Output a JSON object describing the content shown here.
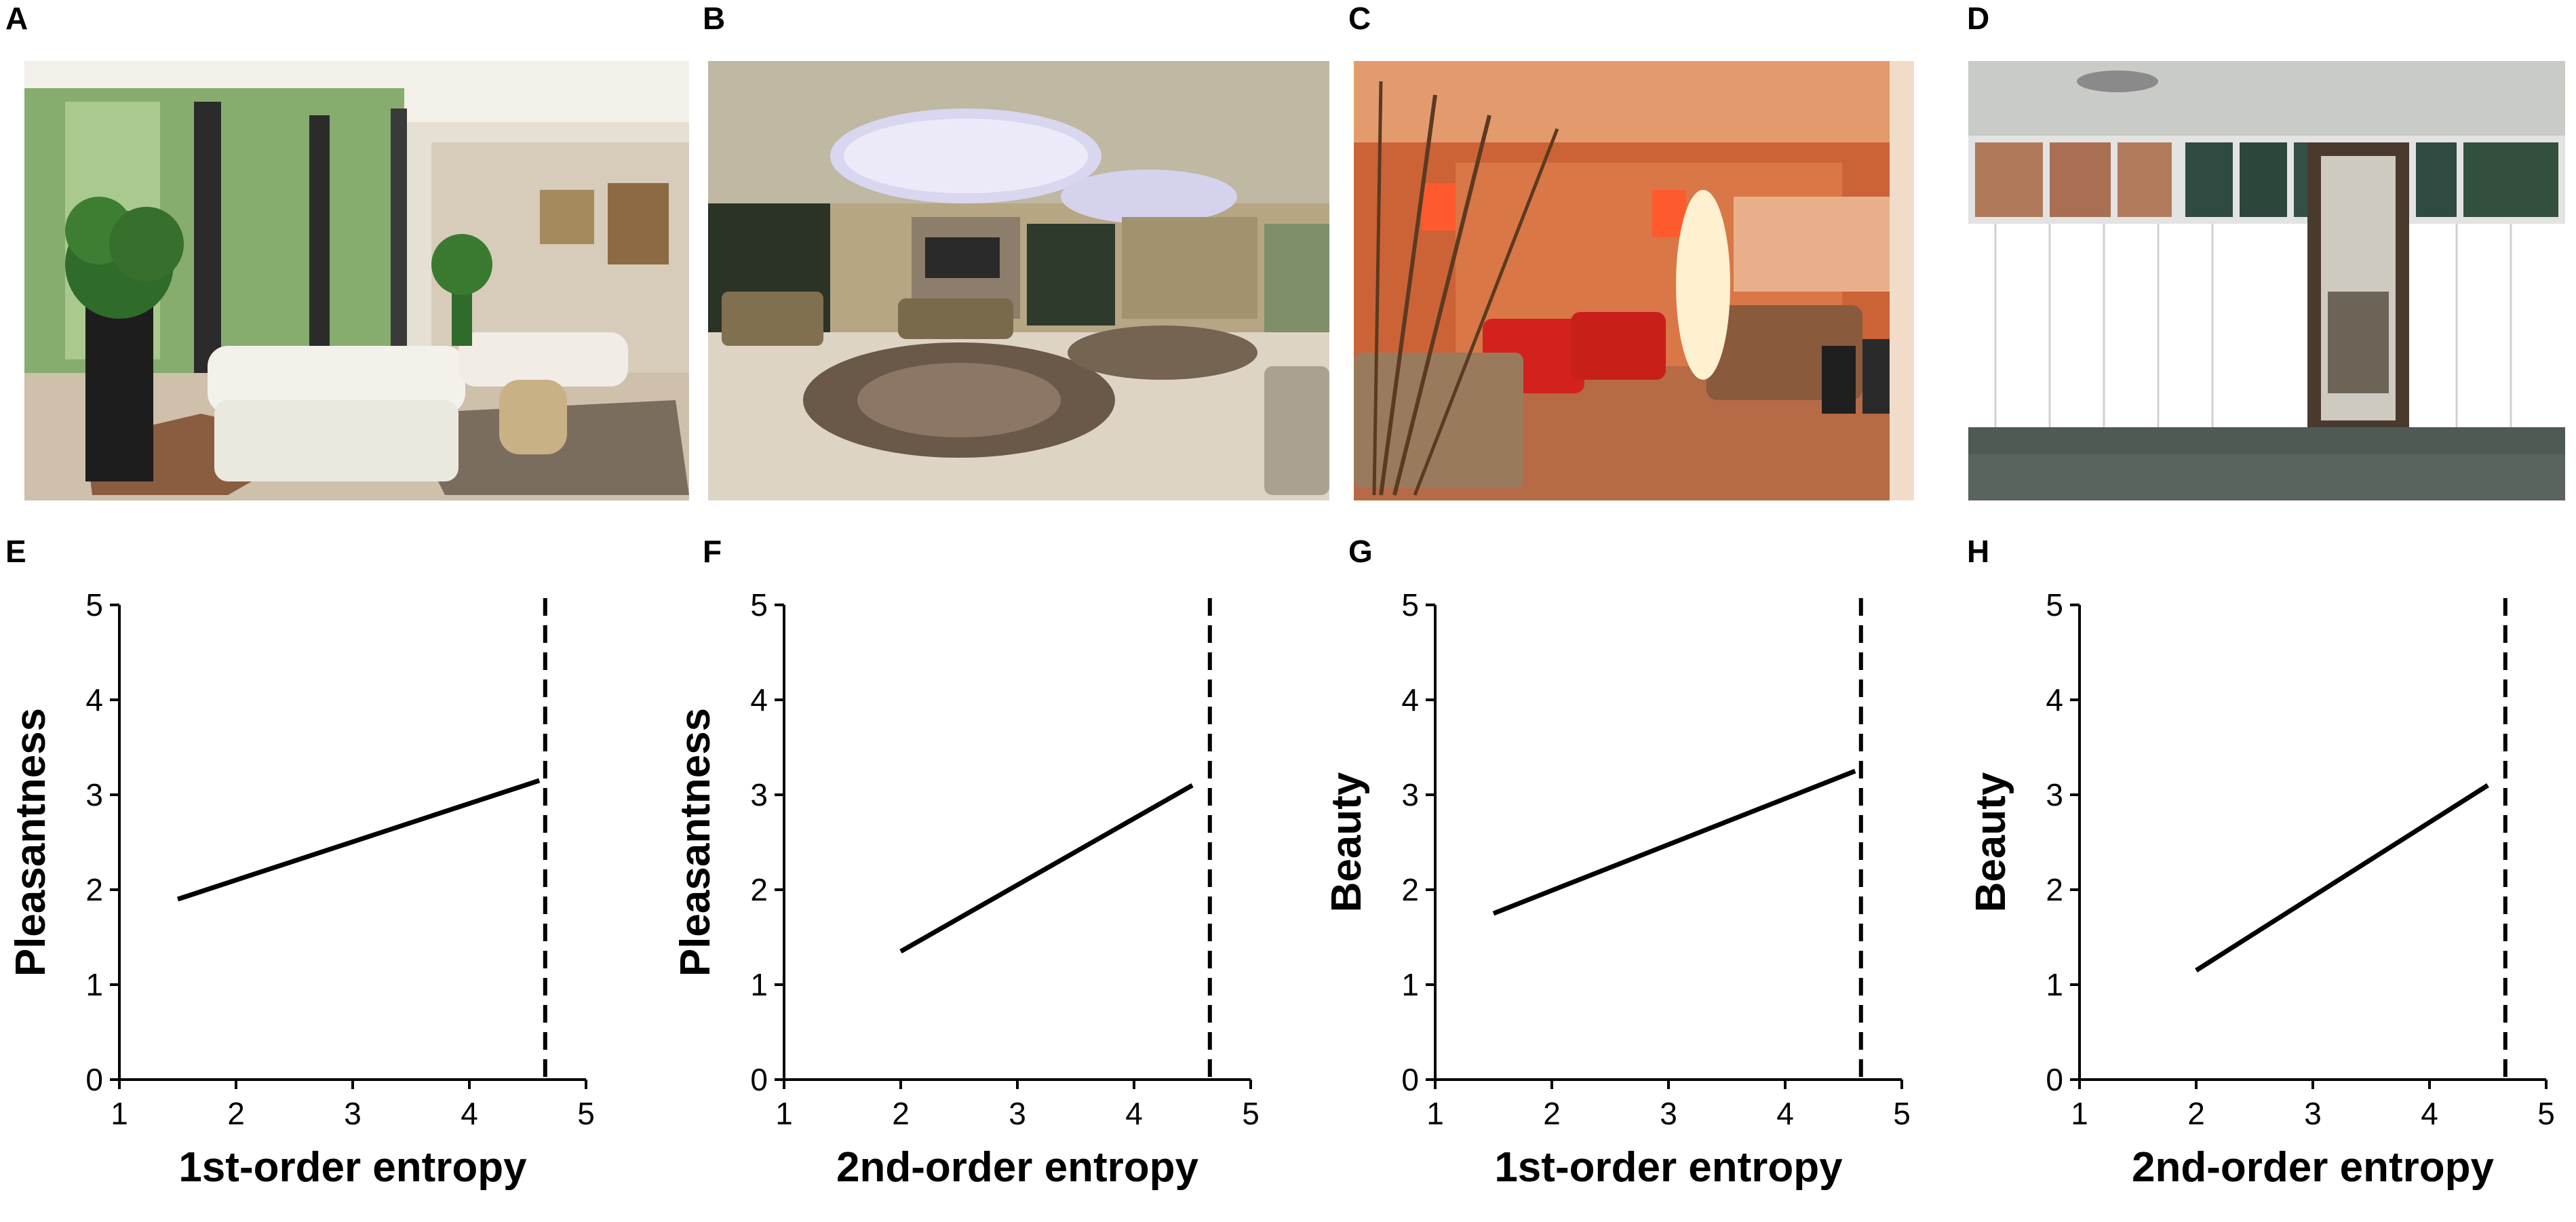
{
  "panels": {
    "A": "A",
    "B": "B",
    "C": "C",
    "D": "D",
    "E": "E",
    "F": "F",
    "G": "G",
    "H": "H"
  },
  "photos": [
    {
      "id": "A",
      "name": "photo-a-living-room",
      "palette": {
        "wall": "#e8e2d6",
        "window": "#7fa86a",
        "floor": "#c9b8a3",
        "sofa": "#f2f0ea",
        "rug": "#8a6c52",
        "plant": "#2f6b2a"
      }
    },
    {
      "id": "B",
      "name": "photo-b-hotel-lobby",
      "palette": {
        "wall": "#b7a78a",
        "ceiling": "#c9c2b0",
        "light": "#c8c8ff",
        "floor": "#d8cfc2",
        "rug": "#6d5c4a",
        "sofa": "#8a7a5e"
      }
    },
    {
      "id": "C",
      "name": "photo-c-red-lounge",
      "palette": {
        "wall": "#d46a3a",
        "ceiling": "#e8a57a",
        "floor": "#b8724e",
        "chair": "#d3231f",
        "sofa": "#8a5a3c",
        "lamp": "#fff3d6"
      }
    },
    {
      "id": "D",
      "name": "photo-d-empty-room",
      "palette": {
        "wall": "#ececec",
        "panel": "#ffffff",
        "window": "#2f4a40",
        "brick": "#b07a5a",
        "floor": "#4e5a54",
        "door": "#4a3a2e"
      }
    }
  ],
  "chart_data": [
    {
      "id": "E",
      "type": "scatter",
      "xlabel": "1st-order entropy",
      "ylabel": "Pleasantness",
      "xlim": [
        1,
        5
      ],
      "ylim": [
        0,
        5
      ],
      "xticks": [
        "1",
        "2",
        "3",
        "4",
        "5"
      ],
      "yticks": [
        "0",
        "1",
        "2",
        "3",
        "4",
        "5"
      ],
      "dashed_vline_x": 4.65,
      "trend": {
        "x": [
          1.5,
          4.6
        ],
        "y": [
          1.9,
          3.15
        ]
      },
      "color": "#000000"
    },
    {
      "id": "F",
      "type": "scatter",
      "xlabel": "2nd-order entropy",
      "ylabel": "Pleasantness",
      "xlim": [
        1,
        5
      ],
      "ylim": [
        0,
        5
      ],
      "xticks": [
        "1",
        "2",
        "3",
        "4",
        "5"
      ],
      "yticks": [
        "0",
        "1",
        "2",
        "3",
        "4",
        "5"
      ],
      "dashed_vline_x": 4.65,
      "trend": {
        "x": [
          2.0,
          4.5
        ],
        "y": [
          1.35,
          3.1
        ]
      },
      "color": "#000000"
    },
    {
      "id": "G",
      "type": "scatter",
      "xlabel": "1st-order entropy",
      "ylabel": "Beauty",
      "xlim": [
        1,
        5
      ],
      "ylim": [
        0,
        5
      ],
      "xticks": [
        "1",
        "2",
        "3",
        "4",
        "5"
      ],
      "yticks": [
        "0",
        "1",
        "2",
        "3",
        "4",
        "5"
      ],
      "dashed_vline_x": 4.65,
      "trend": {
        "x": [
          1.5,
          4.6
        ],
        "y": [
          1.75,
          3.25
        ]
      },
      "color": "#000000"
    },
    {
      "id": "H",
      "type": "scatter",
      "xlabel": "2nd-order entropy",
      "ylabel": "Beauty",
      "xlim": [
        1,
        5
      ],
      "ylim": [
        0,
        5
      ],
      "xticks": [
        "1",
        "2",
        "3",
        "4",
        "5"
      ],
      "yticks": [
        "0",
        "1",
        "2",
        "3",
        "4",
        "5"
      ],
      "dashed_vline_x": 4.65,
      "trend": {
        "x": [
          2.0,
          4.5
        ],
        "y": [
          1.15,
          3.1
        ]
      },
      "color": "#000000"
    }
  ]
}
